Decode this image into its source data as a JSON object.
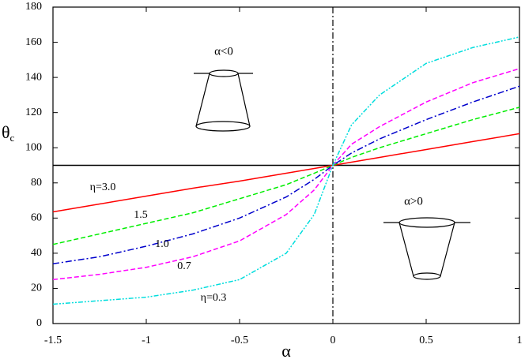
{
  "chart_data": {
    "type": "line",
    "xlabel": "α",
    "ylabel": "θ",
    "ylabel_sub": "c",
    "x": [
      -1.5,
      -1.25,
      -1,
      -0.75,
      -0.5,
      -0.25,
      -0.1,
      0,
      0.1,
      0.25,
      0.5,
      0.75,
      1
    ],
    "series": [
      {
        "name": "η=3.0",
        "color": "#ff0000",
        "dash": "solid",
        "values": [
          63.5,
          68,
          72.5,
          77,
          81,
          85.5,
          88.2,
          90,
          91.8,
          94.5,
          99,
          103.5,
          108
        ]
      },
      {
        "name": "1.5",
        "color": "#00ee00",
        "dash": "dashed",
        "values": [
          45,
          51,
          57,
          63,
          71,
          79,
          85.5,
          90,
          94.5,
          100,
          108,
          116,
          123
        ]
      },
      {
        "name": "1.0",
        "color": "#0000cc",
        "dash": "dashdot",
        "values": [
          34,
          38,
          44,
          51,
          60,
          72,
          82,
          90,
          97,
          105,
          116,
          126,
          135
        ]
      },
      {
        "name": "0.7",
        "color": "#ff00ff",
        "dash": "dashed",
        "values": [
          25,
          28,
          32,
          38,
          47,
          62,
          76,
          90,
          102,
          112,
          126,
          137,
          145
        ]
      },
      {
        "name": "η=0.3",
        "color": "#00dddd",
        "dash": "dashdotdot",
        "values": [
          11,
          13,
          15,
          19,
          25,
          40,
          62,
          90,
          113,
          130,
          148,
          157,
          163
        ]
      }
    ],
    "xlim": [
      -1.5,
      1
    ],
    "ylim": [
      0,
      180
    ],
    "xticks": [
      -1.5,
      -1,
      -0.5,
      0,
      0.5,
      1
    ],
    "yticks": [
      0,
      20,
      40,
      60,
      80,
      100,
      120,
      140,
      160,
      180
    ],
    "hline": 90,
    "vline": 0,
    "annotations": [
      "α<0",
      "α>0"
    ]
  }
}
